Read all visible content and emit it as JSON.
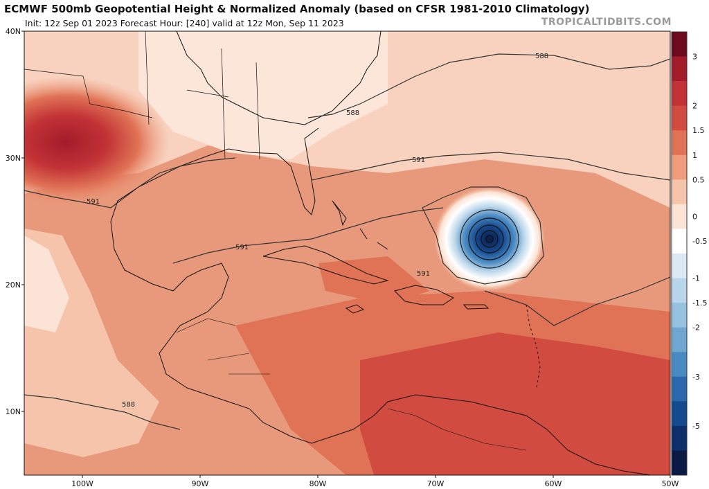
{
  "header": {
    "title": "ECMWF 500mb Geopotential Height & Normalized Anomaly (based on CFSR 1981-2010 Climatology)",
    "subtitle": "Init: 12z Sep 01 2023   Forecast Hour: [240]   valid at 12z Mon, Sep 11 2023",
    "credit": "TROPICALTIDBITS.COM"
  },
  "axes": {
    "lat_labels": [
      "40N",
      "30N",
      "20N",
      "10N"
    ],
    "lon_labels": [
      "100W",
      "90W",
      "80W",
      "70W",
      "60W",
      "50W"
    ]
  },
  "contour_labels": [
    "588",
    "588",
    "591",
    "591",
    "591",
    "591",
    "588"
  ],
  "colorbar": {
    "labels": [
      "3",
      "2",
      "1.5",
      "1",
      "0.5",
      "0",
      "-0.5",
      "-1",
      "-1.5",
      "-2",
      "-3",
      "-5"
    ],
    "colors": [
      "#6e0a1e",
      "#a31c2a",
      "#c23236",
      "#d14b40",
      "#e07255",
      "#ee9c7c",
      "#f6c4aa",
      "#fbe4d5",
      "#ffffff",
      "#dce9f3",
      "#b9d5e9",
      "#96c1df",
      "#6fa7d1",
      "#4a8ac2",
      "#2a68ab",
      "#164a8e",
      "#0d2f6a",
      "#0a1a45"
    ]
  },
  "legend_colors": {
    "ocean_base": "#e38a6c",
    "strong_anomaly": "#c6363a",
    "cyclone_core": "#0d3a7a"
  }
}
